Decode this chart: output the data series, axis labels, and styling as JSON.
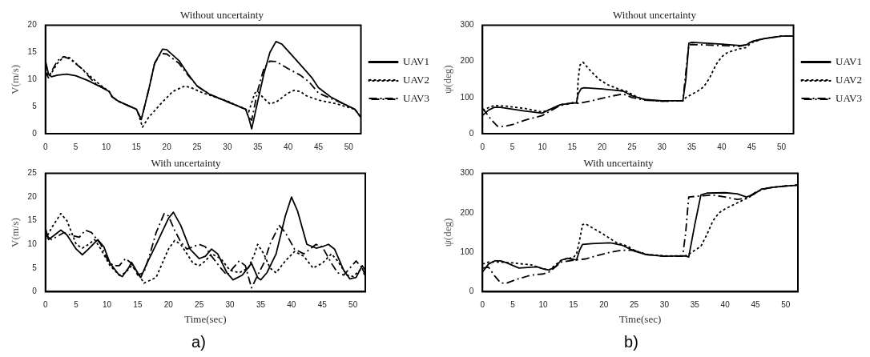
{
  "chart_data": [
    {
      "type": "line",
      "title": "Without uncertainty",
      "ylabel": "V(m/s)",
      "xlim": [
        0,
        52
      ],
      "xticks": [
        0,
        5,
        10,
        15,
        20,
        25,
        30,
        35,
        40,
        45,
        50
      ],
      "ylim": [
        0,
        20
      ],
      "yticks": [
        0,
        5,
        10,
        15,
        20
      ],
      "legend": "right",
      "series": [
        {
          "name": "UAV1",
          "color": "#000000",
          "line_style": "solid",
          "x": [
            0,
            0.5,
            1,
            2,
            3.5,
            5,
            7,
            9,
            10.5,
            11,
            12,
            14,
            15,
            15.8,
            17,
            18,
            19.3,
            20,
            22,
            23.5,
            25,
            27,
            30,
            33,
            33.5,
            34,
            35,
            36,
            37,
            38,
            39,
            41,
            43,
            44,
            45,
            47,
            49,
            51,
            52
          ],
          "values": [
            13.5,
            11,
            10.5,
            10.8,
            11,
            10.7,
            9.8,
            8.7,
            7.8,
            6.8,
            6,
            5,
            4.5,
            2.6,
            8,
            13,
            15.6,
            15.5,
            13.5,
            11,
            8.8,
            7.3,
            5.9,
            4.5,
            3,
            0.9,
            6,
            11,
            15,
            17,
            16.5,
            14,
            11.5,
            10.2,
            8.5,
            6.8,
            5.6,
            4.5,
            3
          ]
        },
        {
          "name": "UAV2",
          "color": "#000000",
          "line_style": "dotted",
          "x": [
            0,
            0.5,
            1,
            2,
            3,
            4,
            5,
            7,
            9,
            10.5,
            11,
            12,
            14,
            15,
            15.5,
            16,
            17,
            19,
            21,
            23,
            24,
            26,
            30,
            33,
            33.5,
            34.5,
            35,
            36,
            37,
            38,
            40,
            41,
            42,
            43,
            45,
            48,
            51,
            52
          ],
          "values": [
            12,
            10.5,
            11.2,
            13,
            14.2,
            14,
            13,
            11,
            9,
            7.8,
            6.8,
            6,
            5,
            4.5,
            3,
            1.2,
            3,
            5.5,
            7.8,
            8.8,
            8.5,
            7.5,
            6,
            4.5,
            4,
            7.5,
            7.8,
            6.5,
            5.5,
            5.8,
            7.5,
            8,
            7.8,
            7,
            6.2,
            5.5,
            4.5,
            3
          ]
        },
        {
          "name": "UAV3",
          "color": "#000000",
          "line_style": "dashed",
          "x": [
            0,
            0.5,
            1,
            2,
            3,
            4,
            6,
            8,
            10.5,
            11,
            12,
            14,
            15,
            15.8,
            17,
            18,
            19,
            20,
            22,
            23.5,
            25,
            27,
            30,
            33,
            33.5,
            34,
            35,
            36,
            37,
            38,
            40,
            42,
            43.5,
            45,
            47,
            49,
            51,
            52
          ],
          "values": [
            11.5,
            10.3,
            11.5,
            13.5,
            14.2,
            13.8,
            12,
            9.5,
            7.8,
            6.8,
            6,
            5,
            4.5,
            2.6,
            8,
            13,
            14.8,
            14.7,
            13,
            10.8,
            8.8,
            7.3,
            5.9,
            4.5,
            3,
            2.5,
            8,
            12,
            13.4,
            13.3,
            12,
            10.8,
            9.5,
            7.5,
            6.5,
            5.6,
            4.5,
            3
          ]
        }
      ]
    },
    {
      "type": "line",
      "title": "With uncertainty",
      "xlabel": "Time(sec)",
      "ylabel": "V(m/s)",
      "xlim": [
        0,
        52
      ],
      "xticks": [
        0,
        5,
        10,
        15,
        20,
        25,
        30,
        35,
        40,
        45,
        50
      ],
      "ylim": [
        0,
        25
      ],
      "yticks": [
        0,
        5,
        10,
        15,
        20,
        25
      ],
      "annotations": [
        "a)"
      ],
      "series": [
        {
          "color": "#000000",
          "line_style": "solid",
          "x": [
            0,
            0.5,
            1.5,
            2.5,
            3.5,
            5,
            6,
            7,
            8.5,
            9.5,
            10.5,
            12,
            12.5,
            13.5,
            14,
            15,
            15.5,
            16.5,
            18,
            20,
            20.8,
            22,
            23.5,
            25,
            26,
            27,
            28,
            29.5,
            30.5,
            32,
            33.5,
            34.5,
            35,
            36,
            37.5,
            39,
            40,
            41,
            42.5,
            44,
            45,
            46,
            47,
            48.5,
            49.5,
            50.5,
            51.5,
            52
          ],
          "values": [
            13.5,
            11,
            12,
            13,
            12,
            9,
            7.8,
            9,
            11,
            9.5,
            6,
            3.5,
            3.2,
            5,
            6.2,
            4,
            3,
            6,
            10,
            15.5,
            16.8,
            14,
            9,
            7,
            7.5,
            9,
            8,
            4,
            2.5,
            3.5,
            6,
            3,
            2.5,
            4,
            8,
            16,
            20,
            17,
            10,
            9.2,
            9.5,
            10,
            9,
            4.5,
            2.7,
            3,
            5.5,
            4.5
          ]
        },
        {
          "color": "#000000",
          "line_style": "dotted",
          "x": [
            0,
            1,
            2.5,
            3.5,
            5,
            6,
            7,
            8,
            9,
            10.5,
            12,
            13,
            14,
            15,
            16,
            18,
            20,
            21,
            22,
            24,
            25,
            26,
            27,
            28.5,
            30,
            31.5,
            33,
            34,
            34.5,
            35.5,
            36.5,
            37.5,
            39,
            40.5,
            42,
            43.5,
            45,
            46.5,
            47.5,
            49,
            50,
            51.5,
            52
          ],
          "values": [
            11,
            13.5,
            16.5,
            15,
            10,
            9.2,
            10,
            11,
            9,
            5.5,
            3.5,
            4,
            5.5,
            4,
            1.8,
            3,
            9,
            10.8,
            10,
            6,
            5.5,
            6.5,
            8,
            7,
            4.5,
            4,
            5,
            8,
            10,
            8,
            5,
            4,
            6.5,
            8.5,
            7.5,
            5,
            6,
            8,
            6.5,
            3.5,
            3.2,
            5,
            3
          ]
        },
        {
          "color": "#000000",
          "line_style": "dashed",
          "x": [
            0,
            1,
            3,
            4,
            5.5,
            6.5,
            7.5,
            9,
            10,
            11,
            12,
            13,
            14,
            15,
            16,
            17,
            18,
            19.3,
            20,
            21,
            22,
            23,
            25,
            26,
            27,
            28.5,
            29.5,
            30.5,
            31.5,
            32.5,
            33.5,
            34.5,
            35.5,
            36.5,
            38,
            39,
            40.5,
            42,
            43,
            44,
            45,
            46.5,
            47.5,
            48.5,
            49.5,
            50.5,
            51.5,
            52
          ],
          "values": [
            12,
            11,
            12.5,
            12,
            11.5,
            13,
            12.5,
            10,
            7,
            5.5,
            5.5,
            7,
            6,
            3.5,
            4,
            8,
            12.5,
            16.5,
            16,
            13,
            10.5,
            9,
            10,
            9.5,
            7.5,
            5,
            3.5,
            5,
            6.5,
            5.5,
            0.8,
            3.5,
            6,
            10,
            14,
            12.5,
            9,
            8,
            9,
            10,
            9.5,
            6,
            4,
            3.5,
            5,
            6.5,
            5,
            3.5
          ]
        }
      ]
    },
    {
      "type": "line",
      "title": "Without uncertainty",
      "ylabel": "ψ(deg)",
      "xlim": [
        0,
        52
      ],
      "xticks": [
        0,
        5,
        10,
        15,
        20,
        25,
        30,
        35,
        40,
        45,
        50
      ],
      "ylim": [
        0,
        300
      ],
      "yticks": [
        0,
        100,
        200,
        300
      ],
      "legend": "right",
      "series": [
        {
          "name": "UAV1",
          "color": "#000000",
          "line_style": "solid",
          "x": [
            0,
            1,
            2,
            3,
            5,
            7,
            10,
            11,
            13,
            15,
            15.7,
            16,
            16.5,
            17,
            20,
            23.5,
            25,
            27,
            30,
            33.5,
            34,
            34.5,
            35,
            40,
            43,
            44,
            45,
            47,
            50,
            52
          ],
          "values": [
            50,
            65,
            73,
            73,
            68,
            63,
            57,
            65,
            80,
            85,
            85,
            110,
            125,
            127,
            124,
            118,
            105,
            95,
            91,
            91,
            150,
            250,
            253,
            248,
            244,
            245,
            255,
            263,
            270,
            270
          ]
        },
        {
          "name": "UAV2",
          "color": "#000000",
          "line_style": "dotted",
          "x": [
            0,
            1,
            2,
            4,
            7,
            10,
            11,
            13,
            15,
            15.8,
            16,
            16.3,
            16.8,
            18,
            19.5,
            21,
            23,
            24,
            26,
            28,
            30,
            33.5,
            34,
            36,
            37,
            38,
            39,
            40,
            41,
            43,
            44,
            45,
            47,
            50,
            52
          ],
          "values": [
            65,
            72,
            78,
            76,
            70,
            60,
            65,
            80,
            85,
            85,
            150,
            190,
            198,
            175,
            150,
            135,
            122,
            118,
            100,
            92,
            90,
            91,
            100,
            118,
            130,
            155,
            190,
            213,
            225,
            235,
            238,
            252,
            263,
            270,
            270
          ]
        },
        {
          "name": "UAV3",
          "color": "#000000",
          "line_style": "dashed",
          "x": [
            0,
            0.5,
            1.5,
            2.5,
            3.5,
            5,
            7,
            10,
            11,
            13,
            15,
            16,
            18,
            21,
            23.5,
            25,
            27,
            30,
            33.5,
            34,
            34.5,
            35,
            40,
            43,
            44,
            45,
            47,
            50,
            52
          ],
          "values": [
            70,
            60,
            38,
            21,
            20,
            25,
            37,
            50,
            60,
            78,
            85,
            84,
            90,
            102,
            110,
            100,
            93,
            90,
            91,
            170,
            246,
            247,
            244,
            242,
            246,
            255,
            263,
            270,
            270
          ]
        }
      ]
    },
    {
      "type": "line",
      "title": "With uncertainty",
      "xlabel": "Time(sec)",
      "ylabel": "ψ(deg)",
      "xlim": [
        0,
        52
      ],
      "xticks": [
        0,
        5,
        10,
        15,
        20,
        25,
        30,
        35,
        40,
        45,
        50
      ],
      "ylim": [
        0,
        300
      ],
      "yticks": [
        0,
        100,
        200,
        300
      ],
      "annotations": [
        "b)"
      ],
      "series": [
        {
          "color": "#000000",
          "line_style": "solid",
          "x": [
            0,
            1,
            2,
            3,
            4,
            6,
            8,
            9,
            10,
            11,
            12,
            13,
            14,
            15,
            15.5,
            16,
            16.5,
            18,
            21,
            23,
            25,
            27,
            30,
            33.5,
            34,
            35,
            36,
            37,
            40,
            42,
            43.5,
            44.5,
            46,
            48,
            50,
            52
          ],
          "values": [
            50,
            70,
            78,
            78,
            73,
            60,
            62,
            63,
            58,
            55,
            63,
            80,
            85,
            82,
            80,
            105,
            120,
            122,
            124,
            118,
            103,
            94,
            90,
            91,
            88,
            170,
            245,
            250,
            251,
            248,
            240,
            245,
            260,
            265,
            268,
            270
          ]
        },
        {
          "color": "#000000",
          "line_style": "dotted",
          "x": [
            0,
            1,
            3,
            5,
            8,
            10,
            11,
            13,
            15,
            15.5,
            16,
            16.5,
            17,
            20,
            22,
            24,
            25,
            27,
            30,
            33.5,
            34,
            36,
            37,
            38,
            39,
            40,
            42,
            44,
            46,
            48,
            50,
            52
          ],
          "values": [
            70,
            75,
            75,
            73,
            68,
            58,
            55,
            80,
            87,
            95,
            130,
            170,
            172,
            145,
            125,
            115,
            105,
            95,
            91,
            91,
            95,
            115,
            145,
            180,
            200,
            210,
            225,
            240,
            260,
            265,
            268,
            270
          ]
        },
        {
          "color": "#000000",
          "line_style": "dashed",
          "x": [
            0,
            1,
            2,
            3,
            4,
            6,
            8,
            10,
            11,
            13,
            15,
            17,
            19,
            21,
            23,
            25,
            27,
            30,
            33,
            33.5,
            34,
            36,
            38,
            40,
            42,
            43.5,
            45,
            47,
            50,
            52
          ],
          "values": [
            60,
            62,
            40,
            22,
            22,
            33,
            42,
            45,
            50,
            75,
            80,
            83,
            92,
            100,
            105,
            105,
            94,
            90,
            90,
            150,
            240,
            243,
            245,
            240,
            234,
            237,
            252,
            263,
            268,
            271
          ]
        }
      ]
    }
  ]
}
